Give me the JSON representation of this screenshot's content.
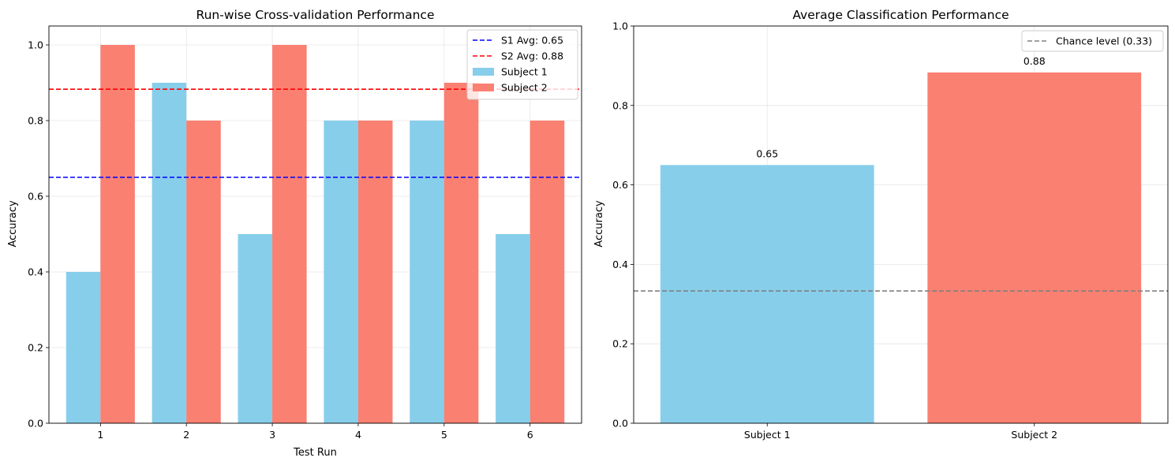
{
  "chart_data": [
    {
      "type": "bar",
      "title": "Run-wise Cross-validation Performance",
      "xlabel": "Test Run",
      "ylabel": "Accuracy",
      "ylim": [
        0,
        1.05
      ],
      "yticks": [
        "0.0",
        "0.2",
        "0.4",
        "0.6",
        "0.8",
        "1.0"
      ],
      "categories": [
        "1",
        "2",
        "3",
        "4",
        "5",
        "6"
      ],
      "grid": true,
      "legend_position": "top-right",
      "series": [
        {
          "name": "Subject 1",
          "color": "#87ceeb",
          "values": [
            0.4,
            0.9,
            0.5,
            0.8,
            0.8,
            0.5
          ]
        },
        {
          "name": "Subject 2",
          "color": "#fa8072",
          "values": [
            1.0,
            0.8,
            1.0,
            0.8,
            0.9,
            0.8
          ]
        }
      ],
      "reference_lines": [
        {
          "label": "S1 Avg: 0.65",
          "value": 0.65,
          "color": "#0000ff",
          "style": "dashed"
        },
        {
          "label": "S2 Avg: 0.88",
          "value": 0.883,
          "color": "#ff0000",
          "style": "dashed"
        }
      ]
    },
    {
      "type": "bar",
      "title": "Average Classification Performance",
      "xlabel": "",
      "ylabel": "Accuracy",
      "ylim": [
        0,
        1.0
      ],
      "yticks": [
        "0.0",
        "0.2",
        "0.4",
        "0.6",
        "0.8",
        "1.0"
      ],
      "categories": [
        "Subject 1",
        "Subject 2"
      ],
      "values": [
        0.65,
        0.883
      ],
      "data_labels": [
        "0.65",
        "0.88"
      ],
      "colors": [
        "#87ceeb",
        "#fa8072"
      ],
      "grid": true,
      "legend_position": "top-right",
      "reference_lines": [
        {
          "label": "Chance level (0.33)",
          "value": 0.333,
          "color": "#808080",
          "style": "dashed"
        }
      ]
    }
  ]
}
